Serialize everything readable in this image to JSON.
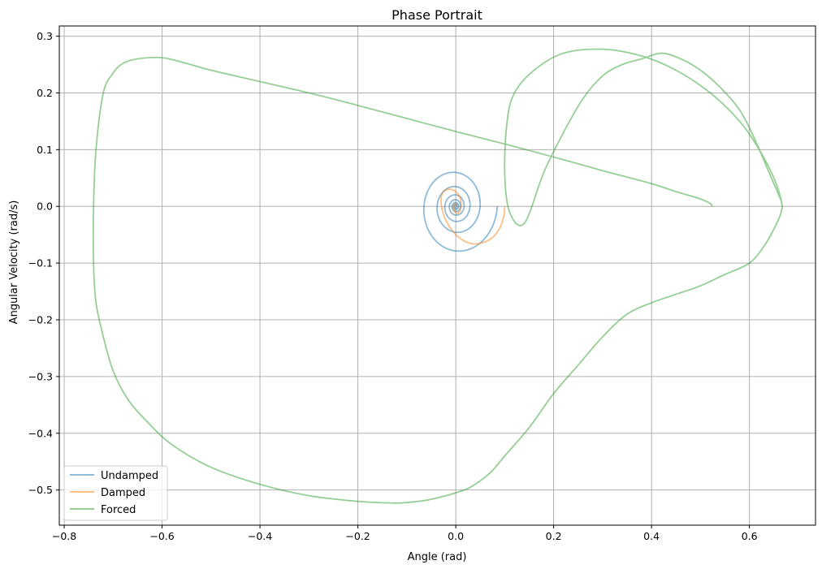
{
  "chart_data": {
    "type": "line",
    "title": "Phase Portrait",
    "xlabel": "Angle (rad)",
    "ylabel": "Angular Velocity (rad/s)",
    "xlim": [
      -0.81,
      0.735
    ],
    "ylim": [
      -0.562,
      0.318
    ],
    "x_ticks": [
      -0.8,
      -0.6,
      -0.4,
      -0.2,
      0.0,
      0.2,
      0.4,
      0.6
    ],
    "x_tick_labels": [
      "−0.8",
      "−0.6",
      "−0.4",
      "−0.2",
      "0.0",
      "0.2",
      "0.4",
      "0.6"
    ],
    "y_ticks": [
      0.3,
      0.2,
      0.1,
      0.0,
      -0.1,
      -0.2,
      -0.3,
      -0.4,
      -0.5
    ],
    "y_tick_labels": [
      "0.3",
      "0.2",
      "0.1",
      "0.0",
      "−0.1",
      "−0.2",
      "−0.3",
      "−0.4",
      "−0.5"
    ],
    "grid": true,
    "legend_position": "lower-left",
    "series": [
      {
        "name": "Undamped",
        "color": "#1f77b4",
        "opacity": 0.5,
        "spiral": {
          "center": [
            0.0,
            0.0
          ],
          "x_amplitude": [
            0.085,
            0.002
          ],
          "y_amplitude": [
            0.09,
            0.002
          ],
          "turns": 7
        }
      },
      {
        "name": "Damped",
        "color": "#ff7f0e",
        "opacity": 0.5,
        "x": [
          0.1,
          0.098,
          0.09,
          0.075,
          0.055,
          0.035,
          0.015,
          -0.005,
          -0.02,
          -0.028,
          -0.03,
          -0.025,
          -0.012,
          0.0,
          0.008,
          0.011,
          0.01,
          0.006,
          0.002,
          -0.002,
          -0.004,
          -0.004,
          -0.002,
          0.0,
          0.001,
          0.001,
          0.0
        ],
        "y": [
          0.0,
          -0.018,
          -0.038,
          -0.055,
          -0.064,
          -0.066,
          -0.06,
          -0.045,
          -0.025,
          -0.005,
          0.013,
          0.026,
          0.03,
          0.026,
          0.017,
          0.005,
          -0.005,
          -0.011,
          -0.012,
          -0.009,
          -0.004,
          0.0,
          0.004,
          0.004,
          0.002,
          0.0,
          0.0
        ]
      },
      {
        "name": "Forced",
        "color": "#2ca02c",
        "opacity": 0.5,
        "x": [
          0.524,
          0.52,
          0.5,
          0.45,
          0.4,
          0.3,
          0.2,
          0.1,
          0.0,
          -0.1,
          -0.2,
          -0.3,
          -0.4,
          -0.5,
          -0.55,
          -0.6,
          -0.65,
          -0.68,
          -0.7,
          -0.72,
          -0.735,
          -0.74,
          -0.74,
          -0.735,
          -0.72,
          -0.7,
          -0.67,
          -0.63,
          -0.58,
          -0.5,
          -0.4,
          -0.3,
          -0.2,
          -0.13,
          -0.1,
          -0.06,
          -0.02,
          0.0,
          0.03,
          0.07,
          0.1,
          0.15,
          0.2,
          0.25,
          0.3,
          0.35,
          0.4,
          0.45,
          0.5,
          0.55,
          0.6,
          0.63,
          0.65,
          0.665,
          0.665,
          0.65,
          0.62,
          0.58,
          0.52,
          0.45,
          0.38,
          0.3,
          0.22,
          0.16,
          0.12,
          0.105,
          0.1,
          0.11,
          0.14,
          0.18,
          0.22,
          0.26,
          0.3,
          0.34,
          0.38,
          0.42,
          0.46,
          0.5,
          0.54,
          0.58,
          0.61,
          0.635,
          0.655,
          0.665
        ],
        "y": [
          0.0,
          0.005,
          0.013,
          0.026,
          0.04,
          0.063,
          0.087,
          0.11,
          0.132,
          0.155,
          0.178,
          0.2,
          0.22,
          0.24,
          0.252,
          0.262,
          0.26,
          0.252,
          0.235,
          0.2,
          0.1,
          0.0,
          -0.1,
          -0.17,
          -0.23,
          -0.29,
          -0.34,
          -0.38,
          -0.42,
          -0.46,
          -0.49,
          -0.51,
          -0.52,
          -0.523,
          -0.522,
          -0.518,
          -0.51,
          -0.505,
          -0.495,
          -0.47,
          -0.44,
          -0.39,
          -0.33,
          -0.28,
          -0.23,
          -0.19,
          -0.17,
          -0.155,
          -0.14,
          -0.12,
          -0.1,
          -0.07,
          -0.04,
          -0.01,
          0.01,
          0.05,
          0.1,
          0.15,
          0.2,
          0.24,
          0.265,
          0.277,
          0.27,
          0.24,
          0.2,
          0.15,
          0.06,
          -0.01,
          -0.03,
          0.06,
          0.13,
          0.19,
          0.23,
          0.25,
          0.26,
          0.27,
          0.26,
          0.24,
          0.21,
          0.17,
          0.12,
          0.07,
          0.03,
          0.01
        ]
      }
    ]
  }
}
